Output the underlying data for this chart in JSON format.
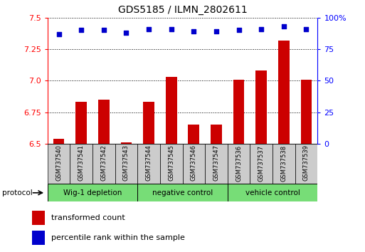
{
  "title": "GDS5185 / ILMN_2802611",
  "samples": [
    "GSM737540",
    "GSM737541",
    "GSM737542",
    "GSM737543",
    "GSM737544",
    "GSM737545",
    "GSM737546",
    "GSM737547",
    "GSM737536",
    "GSM737537",
    "GSM737538",
    "GSM737539"
  ],
  "bar_values": [
    6.54,
    6.83,
    6.85,
    6.51,
    6.83,
    7.03,
    6.65,
    6.65,
    7.01,
    7.08,
    7.32,
    7.01
  ],
  "dot_values": [
    87,
    90,
    90,
    88,
    91,
    91,
    89,
    89,
    90,
    91,
    93,
    91
  ],
  "ylim_left": [
    6.5,
    7.5
  ],
  "ylim_right": [
    0,
    100
  ],
  "yticks_left": [
    6.5,
    6.75,
    7.0,
    7.25,
    7.5
  ],
  "yticks_right": [
    0,
    25,
    50,
    75,
    100
  ],
  "bar_color": "#cc0000",
  "dot_color": "#0000cc",
  "bar_base": 6.5,
  "groups": [
    {
      "label": "Wig-1 depletion",
      "start": 0,
      "end": 3
    },
    {
      "label": "negative control",
      "start": 4,
      "end": 7
    },
    {
      "label": "vehicle control",
      "start": 8,
      "end": 11
    }
  ],
  "group_bg_color": "#77dd77",
  "sample_bg_color": "#cccccc",
  "protocol_label": "protocol",
  "legend_bar_label": "transformed count",
  "legend_dot_label": "percentile rank within the sample",
  "background_color": "#ffffff"
}
